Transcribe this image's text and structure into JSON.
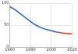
{
  "chart_data": {
    "type": "line",
    "x": [
      1960,
      1965,
      1970,
      1975,
      1980,
      1985,
      1990,
      1995,
      2000,
      2005,
      2010,
      2015,
      2020
    ],
    "series": [
      {
        "color": "#2060c8",
        "values": [
          92,
          85,
          76,
          67,
          58,
          50,
          44,
          40,
          37,
          34,
          null,
          null,
          null
        ]
      },
      {
        "color": "#e03a20",
        "values": [
          null,
          null,
          null,
          null,
          null,
          null,
          null,
          null,
          null,
          34,
          32,
          31,
          30
        ]
      }
    ],
    "xlim": [
      1960,
      2020
    ],
    "xticks": [
      1960,
      1980,
      2000,
      2020
    ],
    "ylim": [
      0,
      100
    ],
    "yticks": [
      0,
      50,
      100
    ],
    "grid": true
  }
}
